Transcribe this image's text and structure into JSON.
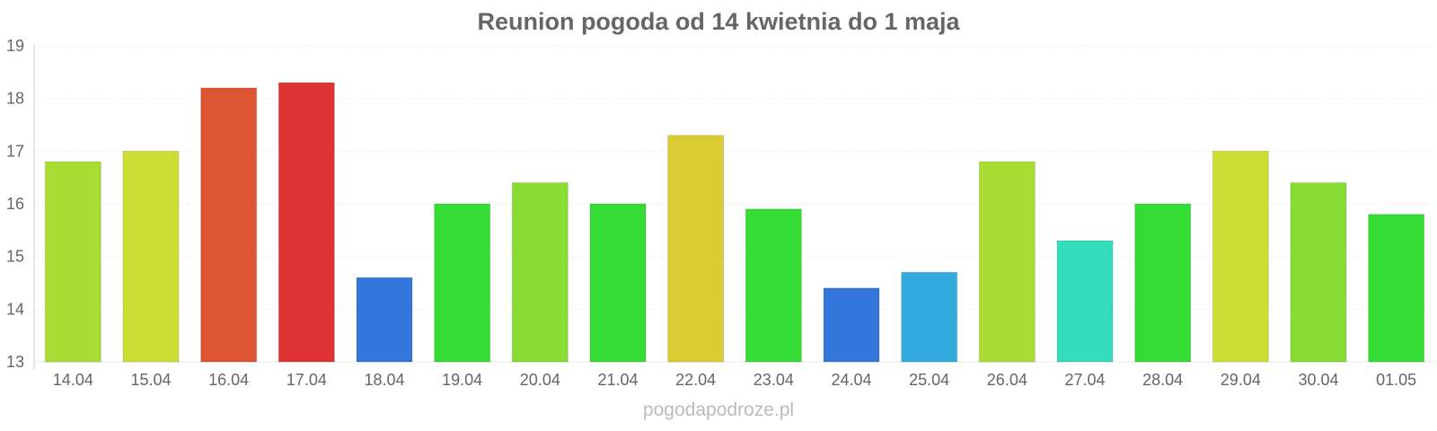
{
  "chart_data": {
    "type": "bar",
    "title": "Reunion pogoda od 14 kwietnia do 1 maja",
    "categories": [
      "14.04",
      "15.04",
      "16.04",
      "17.04",
      "18.04",
      "19.04",
      "20.04",
      "21.04",
      "22.04",
      "23.04",
      "24.04",
      "25.04",
      "26.04",
      "27.04",
      "28.04",
      "29.04",
      "30.04",
      "01.05"
    ],
    "values": [
      16.8,
      17.0,
      18.2,
      18.3,
      14.6,
      16.0,
      16.4,
      16.0,
      17.3,
      15.9,
      14.4,
      14.7,
      16.8,
      15.3,
      16.0,
      17.0,
      16.4,
      15.8
    ],
    "colors": [
      "#aadd33",
      "#ccdd33",
      "#dd5533",
      "#dd3333",
      "#3377dd",
      "#33dd33",
      "#88dd33",
      "#33dd33",
      "#dacc33",
      "#33dd33",
      "#3377dd",
      "#33aadd",
      "#aadd33",
      "#33ddbb",
      "#33dd33",
      "#ccdd33",
      "#88dd33",
      "#33dd33"
    ],
    "yticks": [
      13,
      14,
      15,
      16,
      17,
      18,
      19
    ],
    "ylim": [
      13,
      19
    ],
    "xlabel": "",
    "ylabel": "",
    "grid": true,
    "legend": "none"
  },
  "watermark": "pogodapodroze.pl"
}
